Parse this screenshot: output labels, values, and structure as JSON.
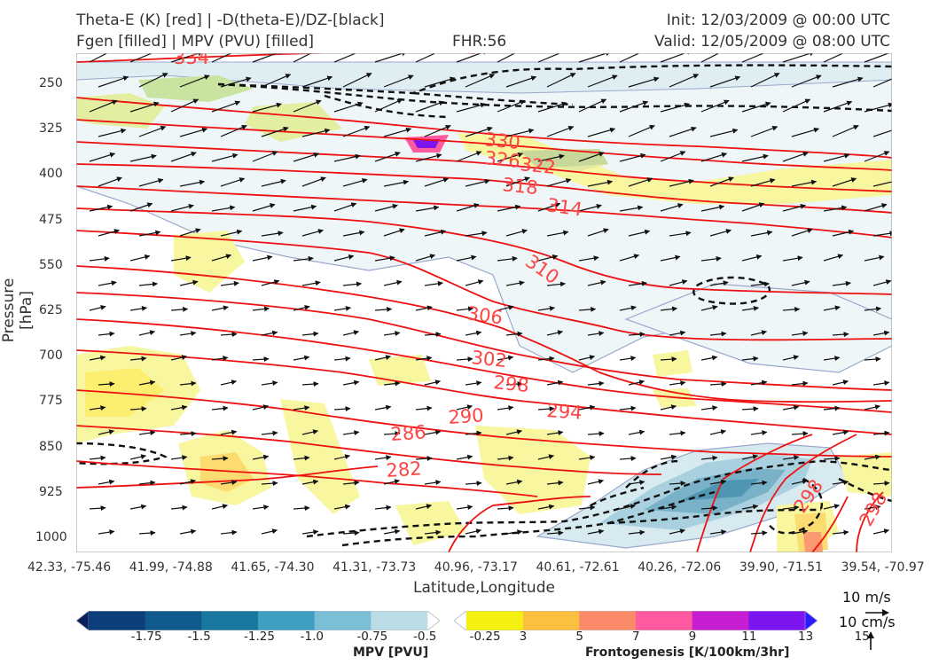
{
  "title": {
    "line1_left": "Theta-E (K) [red] | -D(theta-E)/DZ-[black]",
    "line2_left": "Fgen [filled] | MPV (PVU) [filled]",
    "fhr": "FHR:56",
    "init": "Init: 12/03/2009 @ 00:00 UTC",
    "valid": "Valid: 12/05/2009 @ 08:00 UTC"
  },
  "chart_data": {
    "type": "cross-section",
    "ylabel": "Pressure [hPa]",
    "xlabel": "Latitude,Longitude",
    "y_scale": "log-pressure",
    "y_range": [
      1000,
      200
    ],
    "y_ticks": [
      "250",
      "325",
      "400",
      "475",
      "550",
      "625",
      "700",
      "775",
      "850",
      "925",
      "1000"
    ],
    "x_ticks": [
      "42.33, -75.46",
      "41.99, -74.88",
      "41.65, -74.30",
      "41.31, -73.73",
      "40.96, -73.17",
      "40.61, -72.61",
      "40.26, -72.06",
      "39.90, -71.51",
      "39.54, -70.97"
    ],
    "theta_e_color": "#ee1111",
    "theta_e_labels": [
      "334",
      "330",
      "326",
      "322",
      "318",
      "314",
      "310",
      "306",
      "302",
      "298",
      "294",
      "290",
      "286",
      "282",
      "298",
      "298"
    ],
    "mpv_colorbar": {
      "title": "MPV [PVU]",
      "ticks": [
        "-1.75",
        "-1.5",
        "-1.25",
        "-1.0",
        "-0.75",
        "-0.5",
        "-0.25"
      ],
      "colors": [
        "#08205e",
        "#0b3e7a",
        "#0f5a8e",
        "#17799f",
        "#3f9fc0",
        "#7bbfd6",
        "#bcdde8",
        "#ffffff"
      ]
    },
    "fgen_colorbar": {
      "title": "Frontogenesis [K/100km/3hr]",
      "ticks": [
        "3",
        "5",
        "7",
        "9",
        "11",
        "13",
        "15"
      ],
      "colors": [
        "#ffffff",
        "#f5f011",
        "#fcc040",
        "#fb8a6a",
        "#ff5aa0",
        "#c81ed2",
        "#7d15f0",
        "#2a1aff"
      ]
    },
    "vector_scale": {
      "horizontal": "10 m/s",
      "vertical": "10 cm/s"
    }
  }
}
